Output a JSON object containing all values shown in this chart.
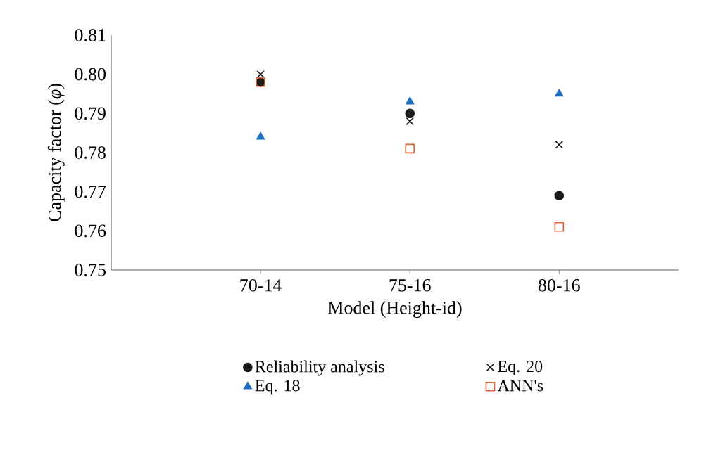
{
  "chart_data": {
    "type": "scatter",
    "xlabel": "Model (Height-id)",
    "ylabel": "Capacity factor (*φ*)",
    "categories": [
      "70-14",
      "75-16",
      "80-16"
    ],
    "ylim": [
      0.75,
      0.81
    ],
    "yticks": [
      0.75,
      0.76,
      0.77,
      0.78,
      0.79,
      {
        "value": 0.8,
        "label": "0.80"
      },
      0.81
    ],
    "legend": "bottom",
    "grid": false,
    "series": [
      {
        "name": "Reliability analysis",
        "color": "#1a1a1a",
        "marker": "circle",
        "values": [
          0.798,
          0.79,
          0.769
        ]
      },
      {
        "name": "Eq. 20",
        "color": "#1a1a1a",
        "marker": "cross",
        "values": [
          0.8,
          0.788,
          0.782
        ]
      },
      {
        "name": "Eq. 18",
        "color": "#1f6fc0",
        "marker": "triangle",
        "values": [
          0.784,
          0.793,
          0.795
        ]
      },
      {
        "name": "ANN's",
        "color": "#d9663a",
        "marker": "square",
        "values": [
          0.798,
          0.781,
          0.761
        ]
      }
    ]
  }
}
